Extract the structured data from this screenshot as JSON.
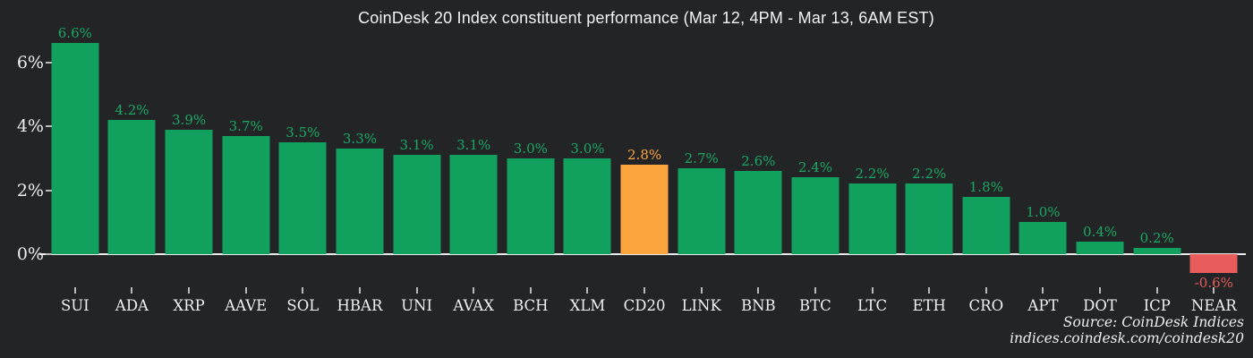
{
  "chart_data": {
    "type": "bar",
    "title": "CoinDesk 20 Index constituent performance (Mar 12, 4PM - Mar 13, 6AM EST)",
    "categories": [
      "SUI",
      "ADA",
      "XRP",
      "AAVE",
      "SOL",
      "HBAR",
      "UNI",
      "AVAX",
      "BCH",
      "XLM",
      "CD20",
      "LINK",
      "BNB",
      "BTC",
      "LTC",
      "ETH",
      "CRO",
      "APT",
      "DOT",
      "ICP",
      "NEAR"
    ],
    "values": [
      6.6,
      4.2,
      3.9,
      3.7,
      3.5,
      3.3,
      3.1,
      3.1,
      3.0,
      3.0,
      2.8,
      2.7,
      2.6,
      2.4,
      2.2,
      2.2,
      1.8,
      1.0,
      0.4,
      0.2,
      -0.6
    ],
    "value_labels": [
      "6.6%",
      "4.2%",
      "3.9%",
      "3.7%",
      "3.5%",
      "3.3%",
      "3.1%",
      "3.1%",
      "3.0%",
      "3.0%",
      "2.8%",
      "2.7%",
      "2.6%",
      "2.4%",
      "2.2%",
      "2.2%",
      "1.8%",
      "1.0%",
      "0.4%",
      "0.2%",
      "-0.6%"
    ],
    "highlight_category": "CD20",
    "ytick_values": [
      0,
      2,
      4,
      6
    ],
    "ytick_labels": [
      "0%",
      "2%",
      "4%",
      "6%"
    ],
    "ylim": [
      -1.2,
      6.9
    ],
    "grid": "off",
    "legend": "none",
    "xlabel": "",
    "ylabel": "",
    "colors": {
      "positive_bar": "#12a05e",
      "highlight_bar": "#fca53e",
      "negative_bar": "#e85c5c",
      "positive_label": "#1ba865",
      "highlight_label": "#fca53e",
      "negative_label": "#e85c5c",
      "background": "#222426",
      "axis_line": "#ececec",
      "tick": "#b9b9b9",
      "text": "#f0f0f0"
    },
    "source_line1": "Source: CoinDesk Indices",
    "source_line2": "indices.coindesk.com/coindesk20"
  }
}
